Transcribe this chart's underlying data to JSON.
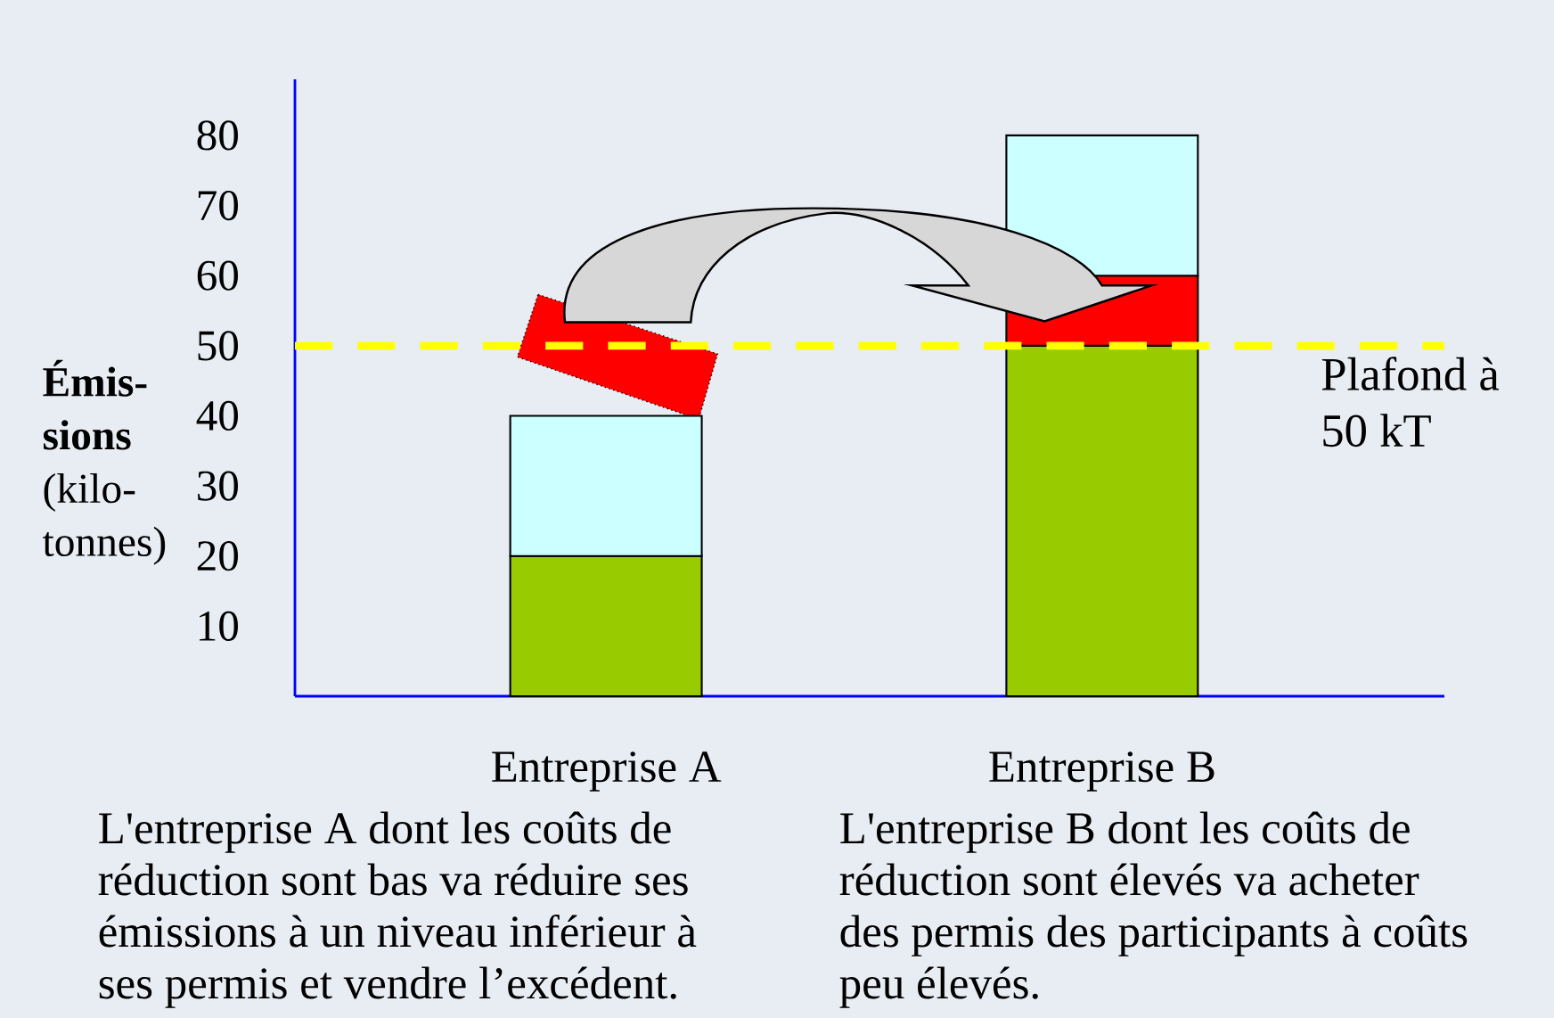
{
  "chart_data": {
    "type": "bar",
    "stacked": true,
    "ylabel": "**Émis-sions** (kilo-tonnes)",
    "categories": [
      "Entreprise A",
      "Entreprise B"
    ],
    "series": [
      {
        "color": "#99cc00",
        "values": [
          20,
          50
        ]
      },
      {
        "color": "#ff0000",
        "values": [
          null,
          10
        ]
      },
      {
        "color": "#ccffff",
        "values": [
          20,
          20
        ]
      }
    ],
    "ylim": [
      0,
      88
    ],
    "yticks": [
      10,
      20,
      30,
      40,
      50,
      60,
      70,
      80
    ],
    "ref_lines": [
      {
        "axis": "y",
        "value": 50,
        "label": "Plafond à 50 kT",
        "color": "#ffff00",
        "line_style": "dashed"
      }
    ],
    "annotations": [
      "L'entreprise A dont les coûts de réduction sont bas va réduire ses émissions à un niveau inférieur à ses permis et vendre l’excédent.",
      "L'entreprise B dont les coûts de réduction sont élevés va acheter des permis des participants à coûts peu élevés."
    ]
  }
}
